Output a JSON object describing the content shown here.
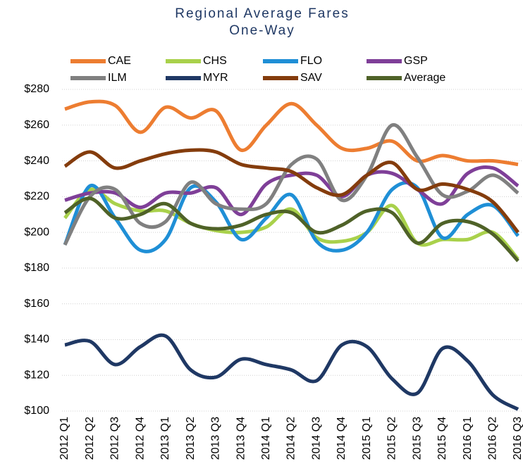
{
  "chart_data": {
    "type": "line",
    "title": "Regional Average Fares",
    "subtitle": "One-Way",
    "categories": [
      "2012 Q1",
      "2012 Q2",
      "2012 Q3",
      "2012 Q4",
      "2013 Q1",
      "2013 Q2",
      "2013 Q3",
      "2013 Q4",
      "2014 Q1",
      "2014 Q2",
      "2014 Q3",
      "2014 Q4",
      "2015 Q1",
      "2015 Q2",
      "2015 Q3",
      "2015 Q4",
      "2016 Q1",
      "2016 Q2",
      "2016 Q3"
    ],
    "series": [
      {
        "name": "CAE",
        "color": "#ed7d31",
        "values": [
          269,
          273,
          271,
          256,
          270,
          264,
          268,
          246,
          260,
          272,
          260,
          247,
          247,
          251,
          240,
          243,
          240,
          240,
          238
        ]
      },
      {
        "name": "CHS",
        "color": "#a9d14b",
        "values": [
          208,
          224,
          216,
          212,
          212,
          205,
          201,
          200,
          203,
          213,
          197,
          195,
          200,
          215,
          194,
          196,
          196,
          200,
          185
        ]
      },
      {
        "name": "FLO",
        "color": "#1f8fd6",
        "values": [
          193,
          226,
          208,
          190,
          196,
          225,
          217,
          196,
          208,
          221,
          195,
          190,
          200,
          224,
          225,
          197,
          210,
          215,
          198
        ]
      },
      {
        "name": "GSP",
        "color": "#7f3f98",
        "values": [
          218,
          222,
          222,
          214,
          222,
          222,
          225,
          210,
          227,
          232,
          232,
          220,
          232,
          233,
          224,
          216,
          233,
          236,
          226
        ]
      },
      {
        "name": "ILM",
        "color": "#808080",
        "values": [
          193,
          220,
          224,
          205,
          206,
          228,
          216,
          213,
          216,
          238,
          241,
          218,
          232,
          260,
          242,
          221,
          223,
          232,
          222
        ]
      },
      {
        "name": "MYR",
        "color": "#1f3864",
        "values": [
          137,
          139,
          126,
          136,
          142,
          123,
          119,
          129,
          126,
          123,
          117,
          137,
          136,
          118,
          110,
          135,
          128,
          109,
          101
        ]
      },
      {
        "name": "SAV",
        "color": "#843c0c",
        "values": [
          237,
          245,
          236,
          240,
          244,
          246,
          245,
          238,
          236,
          234,
          225,
          221,
          232,
          239,
          224,
          227,
          224,
          217,
          200
        ]
      },
      {
        "name": "Average",
        "color": "#4f6228",
        "values": [
          211,
          219,
          208,
          210,
          216,
          205,
          202,
          204,
          210,
          211,
          200,
          204,
          212,
          211,
          194,
          205,
          206,
          199,
          184
        ]
      }
    ],
    "ylim": [
      100,
      280
    ],
    "yticks": [
      {
        "value": 100,
        "label": "$100"
      },
      {
        "value": 120,
        "label": "$120"
      },
      {
        "value": 140,
        "label": "$140"
      },
      {
        "value": 160,
        "label": "$160"
      },
      {
        "value": 180,
        "label": "$180"
      },
      {
        "value": 200,
        "label": "$200"
      },
      {
        "value": 220,
        "label": "$220"
      },
      {
        "value": 240,
        "label": "$240"
      },
      {
        "value": 260,
        "label": "$260"
      },
      {
        "value": 280,
        "label": "$280"
      }
    ],
    "grid": true
  }
}
